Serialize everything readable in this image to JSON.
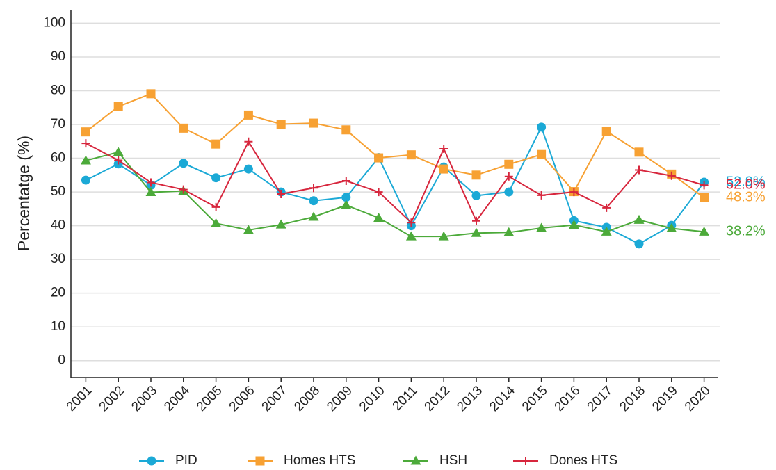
{
  "chart_data": {
    "type": "line",
    "y_label": "Percentatge (%)",
    "categories": [
      "2001",
      "2002",
      "2003",
      "2004",
      "2005",
      "2006",
      "2007",
      "2008",
      "2009",
      "2010",
      "2011",
      "2012",
      "2013",
      "2014",
      "2015",
      "2016",
      "2017",
      "2018",
      "2019",
      "2020"
    ],
    "series": [
      {
        "name": "PID",
        "color": "#1ba9d6",
        "marker": "circle",
        "end_label": "52.9%",
        "values": [
          53.5,
          58.3,
          52,
          58.5,
          54.2,
          56.8,
          50,
          47.4,
          48.4,
          60.2,
          40,
          57.4,
          48.9,
          50,
          69.2,
          41.5,
          39.5,
          34.6,
          40.1,
          52.9
        ]
      },
      {
        "name": "Homes HTS",
        "color": "#f7a133",
        "marker": "square",
        "end_label": "48.3%",
        "values": [
          67.8,
          75.3,
          79.1,
          68.9,
          64.2,
          72.8,
          70.1,
          70.4,
          68.4,
          60.1,
          61,
          56.8,
          55,
          58.2,
          61.1,
          50.1,
          68,
          61.8,
          55.3,
          48.3
        ]
      },
      {
        "name": "HSH",
        "color": "#4caa3a",
        "marker": "triangle",
        "end_label": "38.2%",
        "values": [
          59.3,
          61.8,
          49.9,
          50.3,
          40.7,
          38.7,
          40.3,
          42.6,
          46.1,
          42.3,
          36.8,
          36.8,
          37.8,
          38,
          39.3,
          40.2,
          38.2,
          41.7,
          39.2,
          38.2
        ]
      },
      {
        "name": "Dones HTS",
        "color": "#d7263d",
        "marker": "plus",
        "end_label": "52.0%",
        "values": [
          64.4,
          59.4,
          52.8,
          50.7,
          45.5,
          64.9,
          49.4,
          51.2,
          53.3,
          50,
          40.9,
          62.8,
          41.4,
          54.6,
          49,
          50,
          45.3,
          56.5,
          54.8,
          52
        ]
      }
    ],
    "ylim": [
      -5,
      104
    ],
    "yticks": [
      0,
      10,
      20,
      30,
      40,
      50,
      60,
      70,
      80,
      90,
      100
    ],
    "grid": true,
    "legend": "bottom"
  }
}
